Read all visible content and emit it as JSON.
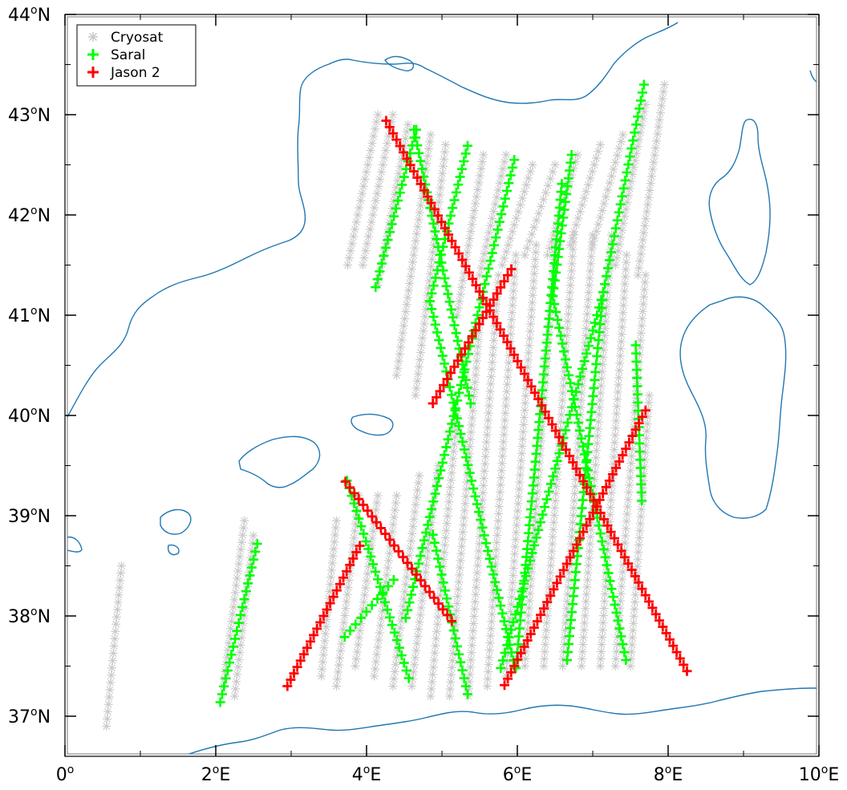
{
  "map": {
    "lon_range": [
      0,
      10
    ],
    "lat_range": [
      36.6,
      44
    ],
    "x_ticks": [
      {
        "value": 0,
        "label": "0",
        "sup": "o",
        "suffix": ""
      },
      {
        "value": 2,
        "label": "2",
        "sup": "o",
        "suffix": "E"
      },
      {
        "value": 4,
        "label": "4",
        "sup": "o",
        "suffix": "E"
      },
      {
        "value": 6,
        "label": "6",
        "sup": "o",
        "suffix": "E"
      },
      {
        "value": 8,
        "label": "8",
        "sup": "o",
        "suffix": "E"
      },
      {
        "value": 10,
        "label": "10",
        "sup": "o",
        "suffix": "E"
      }
    ],
    "y_ticks": [
      {
        "value": 37,
        "label": "37",
        "sup": "o",
        "suffix": "N"
      },
      {
        "value": 38,
        "label": "38",
        "sup": "o",
        "suffix": "N"
      },
      {
        "value": 39,
        "label": "39",
        "sup": "o",
        "suffix": "N"
      },
      {
        "value": 40,
        "label": "40",
        "sup": "o",
        "suffix": "N"
      },
      {
        "value": 41,
        "label": "41",
        "sup": "o",
        "suffix": "N"
      },
      {
        "value": 42,
        "label": "42",
        "sup": "o",
        "suffix": "N"
      },
      {
        "value": 43,
        "label": "43",
        "sup": "o",
        "suffix": "N"
      },
      {
        "value": 44,
        "label": "44",
        "sup": "o",
        "suffix": "N"
      }
    ],
    "coast_color": "#1f77b4"
  },
  "legend": {
    "items": [
      {
        "label": "Cryosat",
        "marker": "asterisk",
        "color": "#c8c8c8"
      },
      {
        "label": "Saral",
        "marker": "plus",
        "color": "#00ff00"
      },
      {
        "label": "Jason 2",
        "marker": "plus",
        "color": "#ff0000"
      }
    ]
  },
  "chart_data": {
    "type": "scatter",
    "cryosat_color": "#c8c8c8",
    "saral_color": "#00ff00",
    "jason2_color": "#ff0000",
    "saral_tracks": [
      [
        [
          4.12,
          41.28
        ],
        [
          4.66,
          42.85
        ]
      ],
      [
        [
          4.63,
          42.85
        ],
        [
          5.38,
          40.12
        ]
      ],
      [
        [
          5.34,
          42.69
        ],
        [
          4.84,
          41.14
        ]
      ],
      [
        [
          4.84,
          41.14
        ],
        [
          5.97,
          37.48
        ]
      ],
      [
        [
          5.96,
          42.55
        ],
        [
          4.52,
          37.98
        ]
      ],
      [
        [
          4.56,
          37.38
        ],
        [
          3.74,
          39.35
        ]
      ],
      [
        [
          6.72,
          42.6
        ],
        [
          6.47,
          41.19
        ]
      ],
      [
        [
          6.47,
          41.19
        ],
        [
          7.44,
          37.56
        ]
      ],
      [
        [
          6.59,
          42.31
        ],
        [
          5.98,
          37.48
        ]
      ],
      [
        [
          7.68,
          43.3
        ],
        [
          7.14,
          41.23
        ]
      ],
      [
        [
          7.14,
          41.23
        ],
        [
          6.66,
          37.56
        ]
      ],
      [
        [
          5.78,
          37.48
        ],
        [
          7.14,
          41.23
        ]
      ],
      [
        [
          7.57,
          40.7
        ],
        [
          7.65,
          39.15
        ]
      ],
      [
        [
          5.34,
          37.22
        ],
        [
          4.88,
          38.81
        ]
      ],
      [
        [
          4.36,
          38.36
        ],
        [
          3.71,
          37.79
        ]
      ],
      [
        [
          2.06,
          37.14
        ],
        [
          2.55,
          38.72
        ]
      ]
    ],
    "jason2_tracks": [
      [
        [
          4.26,
          42.94
        ],
        [
          8.25,
          37.45
        ]
      ],
      [
        [
          4.88,
          40.12
        ],
        [
          5.92,
          41.46
        ]
      ],
      [
        [
          5.83,
          37.31
        ],
        [
          7.7,
          40.05
        ]
      ],
      [
        [
          3.72,
          39.34
        ],
        [
          5.13,
          37.95
        ]
      ],
      [
        [
          2.95,
          37.3
        ],
        [
          3.91,
          38.7
        ]
      ]
    ],
    "cryosat_tracks": [
      [
        [
          0.55,
          36.9
        ],
        [
          0.75,
          38.5
        ]
      ],
      [
        [
          2.1,
          37.3
        ],
        [
          2.38,
          38.95
        ]
      ],
      [
        [
          2.25,
          37.2
        ],
        [
          2.5,
          38.8
        ]
      ],
      [
        [
          3.4,
          37.4
        ],
        [
          3.6,
          38.95
        ]
      ],
      [
        [
          3.6,
          37.3
        ],
        [
          3.9,
          39.2
        ]
      ],
      [
        [
          3.85,
          37.5
        ],
        [
          4.15,
          39.2
        ]
      ],
      [
        [
          4.1,
          37.4
        ],
        [
          4.4,
          39.2
        ]
      ],
      [
        [
          4.35,
          37.3
        ],
        [
          4.7,
          39.4
        ]
      ],
      [
        [
          4.6,
          37.3
        ],
        [
          4.95,
          39.5
        ]
      ],
      [
        [
          4.85,
          37.2
        ],
        [
          5.2,
          40.0
        ]
      ],
      [
        [
          5.1,
          37.2
        ],
        [
          5.5,
          40.9
        ]
      ],
      [
        [
          5.35,
          37.2
        ],
        [
          5.75,
          41.4
        ]
      ],
      [
        [
          5.6,
          37.3
        ],
        [
          5.98,
          41.6
        ]
      ],
      [
        [
          5.85,
          37.4
        ],
        [
          6.25,
          41.7
        ]
      ],
      [
        [
          6.1,
          37.5
        ],
        [
          6.5,
          41.7
        ]
      ],
      [
        [
          6.35,
          37.5
        ],
        [
          6.75,
          41.8
        ]
      ],
      [
        [
          6.6,
          37.5
        ],
        [
          7.0,
          41.8
        ]
      ],
      [
        [
          6.85,
          37.5
        ],
        [
          7.25,
          41.8
        ]
      ],
      [
        [
          7.1,
          37.5
        ],
        [
          7.45,
          41.6
        ]
      ],
      [
        [
          7.3,
          37.5
        ],
        [
          7.7,
          41.4
        ]
      ],
      [
        [
          7.5,
          37.5
        ],
        [
          7.75,
          40.2
        ]
      ],
      [
        [
          3.75,
          41.5
        ],
        [
          4.15,
          43.0
        ]
      ],
      [
        [
          3.95,
          41.5
        ],
        [
          4.35,
          43.0
        ]
      ],
      [
        [
          4.15,
          41.3
        ],
        [
          4.55,
          42.9
        ]
      ],
      [
        [
          4.4,
          40.4
        ],
        [
          4.85,
          42.8
        ]
      ],
      [
        [
          4.65,
          40.2
        ],
        [
          5.05,
          42.7
        ]
      ],
      [
        [
          5.2,
          41.0
        ],
        [
          5.55,
          42.6
        ]
      ],
      [
        [
          5.5,
          41.4
        ],
        [
          5.85,
          42.6
        ]
      ],
      [
        [
          5.8,
          41.5
        ],
        [
          6.2,
          42.5
        ]
      ],
      [
        [
          6.1,
          41.6
        ],
        [
          6.5,
          42.5
        ]
      ],
      [
        [
          6.4,
          41.6
        ],
        [
          6.8,
          42.6
        ]
      ],
      [
        [
          6.7,
          41.7
        ],
        [
          7.1,
          42.7
        ]
      ],
      [
        [
          7.0,
          41.7
        ],
        [
          7.4,
          42.8
        ]
      ],
      [
        [
          7.3,
          41.5
        ],
        [
          7.7,
          43.1
        ]
      ],
      [
        [
          7.6,
          41.4
        ],
        [
          7.95,
          43.3
        ]
      ]
    ]
  }
}
